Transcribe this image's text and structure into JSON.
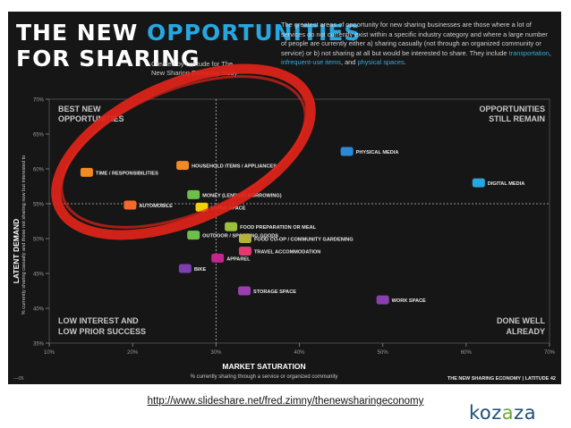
{
  "slide": {
    "title_part1": "THE NEW ",
    "title_part2": "OPPORTUNITIES",
    "title_line2": "FOR SHARING",
    "credit_line1": "Created by Latitude for The",
    "credit_line2": "New Sharing Economy study",
    "intro_main": "The greatest areas of opportunity for new sharing businesses are those where a lot of services do not currently exist within a specific industry category and where a large number of people are currently either a) sharing casually (not through an organized community or service) or b) not sharing at all but would be interested to share. They include",
    "intro_k1": "transportation",
    "intro_sep1": ", ",
    "intro_k2": "infrequent-use items",
    "intro_sep2": ", and ",
    "intro_k3": "physical spaces",
    "intro_end": ".",
    "footer_left": "—05",
    "footer_right": "THE NEW SHARING ECONOMY | LATITUDE 42",
    "accent_color": "#27a6e0",
    "highlight_circle_color": "#e0231a"
  },
  "chart_data": {
    "type": "scatter",
    "title": "",
    "xlabel": "MARKET SATURATION",
    "xlabel_sub": "% currently sharing through a service or organized community",
    "ylabel": "LATENT DEMAND",
    "ylabel_sub": "% currently sharing casually and those not sharing now but interested to",
    "xlim": [
      10,
      70
    ],
    "ylim": [
      35,
      70
    ],
    "x_ticks": [
      "10%",
      "20%",
      "30%",
      "40%",
      "50%",
      "60%",
      "70%"
    ],
    "y_ticks": [
      "35%",
      "40%",
      "45%",
      "50%",
      "55%",
      "60%",
      "65%",
      "70%"
    ],
    "x_divider": 30,
    "y_divider": 55,
    "quadrants": {
      "top_left": [
        "BEST NEW",
        "OPPORTUNITIES"
      ],
      "top_right": [
        "OPPORTUNITIES",
        "STILL REMAIN"
      ],
      "bottom_left": [
        "LOW INTEREST AND",
        "LOW PRIOR SUCCESS"
      ],
      "bottom_right": [
        "DONE WELL",
        "ALREADY"
      ]
    },
    "points": [
      {
        "label": "TIME / RESPONSIBILITIES",
        "x": 14.5,
        "y": 59.5,
        "color": "#f08a24",
        "icon": "alarm-clock-icon"
      },
      {
        "label": "HOUSEHOLD ITEMS / APPLIANCES",
        "x": 26,
        "y": 60.5,
        "color": "#f08a24",
        "icon": "appliance-icon"
      },
      {
        "label": "AUTOMOBILE",
        "x": 19.7,
        "y": 54.8,
        "color": "#f26a2a",
        "icon": "car-icon"
      },
      {
        "label": "MONEY (LENDING BORROWING)",
        "x": 27.3,
        "y": 56.3,
        "color": "#6cc04a",
        "icon": "dollar-icon"
      },
      {
        "label": "LIVING SPACE",
        "x": 28.3,
        "y": 54.5,
        "color": "#f2d200",
        "icon": "house-icon"
      },
      {
        "label": "OUTDOOR / SPORTING GOODS",
        "x": 27.3,
        "y": 50.5,
        "color": "#6cc04a",
        "icon": "sporting-goods-icon"
      },
      {
        "label": "FOOD PREPARATION OR MEAL",
        "x": 31.8,
        "y": 51.7,
        "color": "#9ac03c",
        "icon": "food-icon"
      },
      {
        "label": "FOOD CO-OP / COMMUNITY GARDENING",
        "x": 33.5,
        "y": 50,
        "color": "#b5b23a",
        "icon": "garden-icon"
      },
      {
        "label": "TRAVEL ACCOMMODATION",
        "x": 33.5,
        "y": 48.2,
        "color": "#e23a6e",
        "icon": "plane-icon"
      },
      {
        "label": "APPAREL",
        "x": 30.2,
        "y": 47.2,
        "color": "#c2268e",
        "icon": "shirt-icon"
      },
      {
        "label": "BIKE",
        "x": 26.3,
        "y": 45.7,
        "color": "#7b3fb0",
        "icon": "bike-icon"
      },
      {
        "label": "STORAGE SPACE",
        "x": 33.4,
        "y": 42.5,
        "color": "#9b3fae",
        "icon": "storage-icon"
      },
      {
        "label": "PHYSICAL MEDIA",
        "x": 45.7,
        "y": 62.5,
        "color": "#2a8ad8",
        "icon": "headphones-icon"
      },
      {
        "label": "DIGITAL MEDIA",
        "x": 61.5,
        "y": 58,
        "color": "#27a6e0",
        "icon": "monitor-icon"
      },
      {
        "label": "WORK SPACE",
        "x": 50,
        "y": 41.2,
        "color": "#8a3fae",
        "icon": "desk-icon"
      }
    ]
  },
  "caption": {
    "url": "http://www.slideshare.net/fred.zimny/thenewsharingeconomy"
  },
  "brand": {
    "prefix": "koz",
    "a": "a",
    "z": "z",
    "a2": "a",
    "color_blue": "#1d4f7a",
    "color_green": "#6aa835"
  }
}
